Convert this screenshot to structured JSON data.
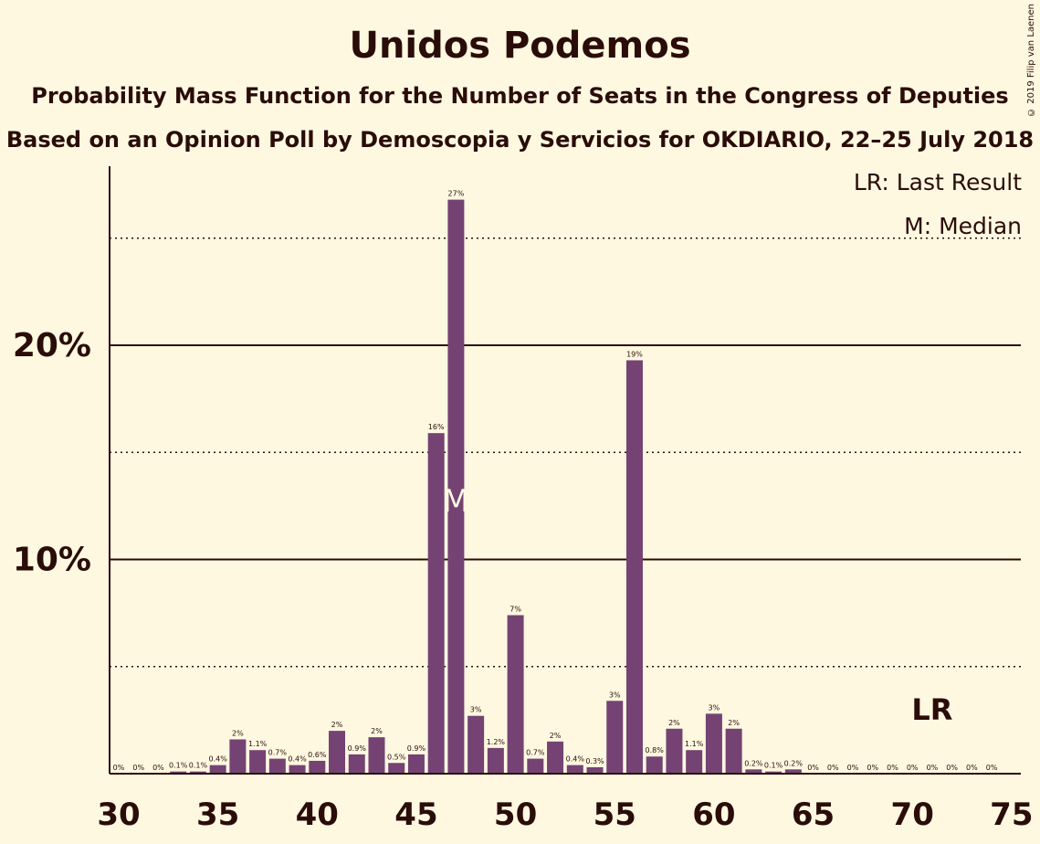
{
  "title": "Unidos Podemos",
  "subtitle_1": "Probability Mass Function for the Number of Seats in the Congress of Deputies",
  "subtitle_2": "Based on an Opinion Poll by Demoscopia y Servicios for OKDIARIO, 22–25 July 2018",
  "copyright": "© 2019 Filip van Laenen",
  "legend": {
    "last_result": "LR: Last Result",
    "median": "M: Median"
  },
  "colors": {
    "background": "#fff8e1",
    "bar": "#744373",
    "text": "#2a0c08"
  },
  "chart_data": {
    "type": "bar",
    "xlim": [
      30,
      75
    ],
    "ylim": [
      0,
      29
    ],
    "x_ticks": [
      30,
      35,
      40,
      45,
      50,
      55,
      60,
      65,
      70,
      75
    ],
    "y_ticks": [
      {
        "value": 10,
        "label": "10%"
      },
      {
        "value": 20,
        "label": "20%"
      }
    ],
    "y_dotted_gridlines": [
      5,
      15,
      25
    ],
    "x": [
      30,
      31,
      32,
      33,
      34,
      35,
      36,
      37,
      38,
      39,
      40,
      41,
      42,
      43,
      44,
      45,
      46,
      47,
      48,
      49,
      50,
      51,
      52,
      53,
      54,
      55,
      56,
      57,
      58,
      59,
      60,
      61,
      62,
      63,
      64,
      65,
      66,
      67,
      68,
      69,
      70,
      71,
      72,
      73,
      74
    ],
    "values": [
      0,
      0,
      0,
      0.1,
      0.1,
      0.4,
      1.6,
      1.1,
      0.7,
      0.4,
      0.6,
      2.0,
      0.9,
      1.7,
      0.5,
      0.9,
      15.9,
      26.8,
      2.7,
      1.2,
      7.4,
      0.7,
      1.5,
      0.4,
      0.3,
      3.4,
      19.3,
      0.8,
      2.1,
      1.1,
      2.8,
      2.1,
      0.2,
      0.1,
      0.2,
      0,
      0,
      0,
      0,
      0,
      0,
      0,
      0,
      0,
      0
    ],
    "labels": [
      "0%",
      "0%",
      "0%",
      "0.1%",
      "0.1%",
      "0.4%",
      "2%",
      "1.1%",
      "0.7%",
      "0.4%",
      "0.6%",
      "2%",
      "0.9%",
      "2%",
      "0.5%",
      "0.9%",
      "16%",
      "27%",
      "3%",
      "1.2%",
      "7%",
      "0.7%",
      "2%",
      "0.4%",
      "0.3%",
      "3%",
      "19%",
      "0.8%",
      "2%",
      "1.1%",
      "3%",
      "2%",
      "0.2%",
      "0.1%",
      "0.2%",
      "0%",
      "0%",
      "0%",
      "0%",
      "0%",
      "0%",
      "0%",
      "0%",
      "0%",
      "0%"
    ],
    "median": {
      "x": 47,
      "label": "M"
    },
    "last_result": {
      "x": 71,
      "label": "LR"
    }
  }
}
